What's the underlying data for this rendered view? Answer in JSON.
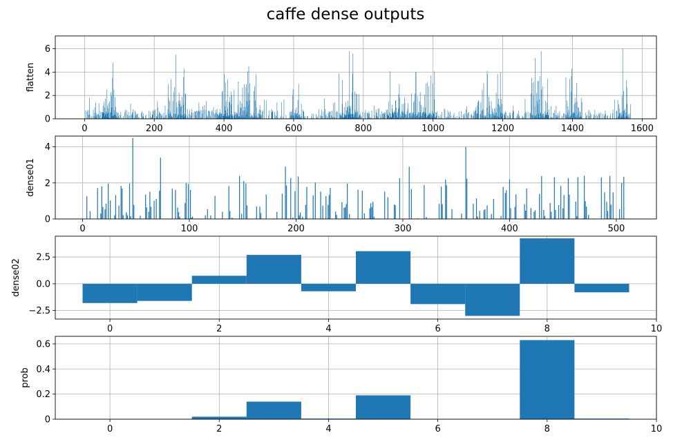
{
  "figure": {
    "title": "caffe dense outputs",
    "bar_color": "#1f77b4"
  },
  "chart_data": [
    {
      "type": "bar",
      "ylabel": "flatten",
      "xlim": [
        -84,
        1641
      ],
      "ylim": [
        0,
        7.1
      ],
      "xticks": [
        0,
        200,
        400,
        600,
        800,
        1000,
        1200,
        1400,
        1600
      ],
      "yticks": [
        0,
        2,
        4,
        6
      ],
      "grid": true,
      "n_values": 1568,
      "bar_width": 0.8,
      "values_note": "dense sparse activations across 1568 units, peak near 6.0 at ~1548",
      "notable_values": [
        {
          "x": 81,
          "y": 4.8
        },
        {
          "x": 262,
          "y": 5.5
        },
        {
          "x": 285,
          "y": 4.3
        },
        {
          "x": 471,
          "y": 4.5
        },
        {
          "x": 760,
          "y": 5.8
        },
        {
          "x": 770,
          "y": 5.6
        },
        {
          "x": 994,
          "y": 3.7
        },
        {
          "x": 1155,
          "y": 4.1
        },
        {
          "x": 1193,
          "y": 4.0
        },
        {
          "x": 1293,
          "y": 5.2
        },
        {
          "x": 1310,
          "y": 5.8
        },
        {
          "x": 1398,
          "y": 4.3
        },
        {
          "x": 1544,
          "y": 6.0
        },
        {
          "x": 1555,
          "y": 3.3
        }
      ]
    },
    {
      "type": "bar",
      "ylabel": "dense01",
      "xlim": [
        -25.6,
        537.6
      ],
      "ylim": [
        0,
        4.6
      ],
      "xticks": [
        0,
        100,
        200,
        300,
        400,
        500
      ],
      "yticks": [
        0,
        2,
        4
      ],
      "grid": true,
      "n_values": 512,
      "bar_width": 0.8,
      "notable_values": [
        {
          "x": 47,
          "y": 4.5
        },
        {
          "x": 73,
          "y": 3.4
        },
        {
          "x": 190,
          "y": 2.9
        },
        {
          "x": 306,
          "y": 2.9
        },
        {
          "x": 359,
          "y": 4.0
        },
        {
          "x": 400,
          "y": 2.2
        },
        {
          "x": 470,
          "y": 2.4
        },
        {
          "x": 505,
          "y": 2.0
        }
      ]
    },
    {
      "type": "bar",
      "ylabel": "dense02",
      "categories": [
        0,
        1,
        2,
        3,
        4,
        5,
        6,
        7,
        8,
        9
      ],
      "values": [
        -1.8,
        -1.6,
        0.75,
        2.7,
        -0.7,
        3.05,
        -1.9,
        -3.0,
        4.25,
        -0.8
      ],
      "bar_width": 1.0,
      "xlim": [
        -1,
        10
      ],
      "ylim": [
        -3.3,
        4.45
      ],
      "xticks": [
        0,
        2,
        4,
        6,
        8,
        10
      ],
      "yticks": [
        -2.5,
        0.0,
        2.5
      ],
      "ytick_labels": [
        "−2.5",
        "0.0",
        "2.5"
      ],
      "grid": true
    },
    {
      "type": "bar",
      "ylabel": "prob",
      "categories": [
        0,
        1,
        2,
        3,
        4,
        5,
        6,
        7,
        8,
        9
      ],
      "values": [
        0.0,
        0.0,
        0.02,
        0.14,
        0.005,
        0.19,
        0.0,
        0.0,
        0.63,
        0.005
      ],
      "bar_width": 1.0,
      "xlim": [
        -1,
        10
      ],
      "ylim": [
        0,
        0.66
      ],
      "xticks": [
        0,
        2,
        4,
        6,
        8,
        10
      ],
      "yticks": [
        0.0,
        0.2,
        0.4,
        0.6
      ],
      "grid": true
    }
  ]
}
